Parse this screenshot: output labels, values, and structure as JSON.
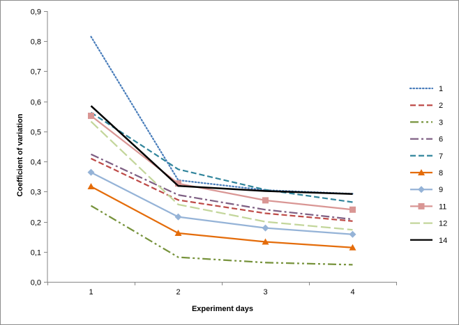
{
  "chart_data": {
    "type": "line",
    "title": "",
    "xlabel": "Experiment days",
    "ylabel": "Coefficient of variation",
    "x": [
      "1",
      "2",
      "3",
      "4"
    ],
    "ylim": [
      0,
      0.9
    ],
    "yticks": [
      "0,0",
      "0,1",
      "0,2",
      "0,3",
      "0,4",
      "0,5",
      "0,6",
      "0,7",
      "0,8",
      "0,9"
    ],
    "grid": false,
    "legend": "right",
    "series": [
      {
        "name": "1",
        "values": [
          0.815,
          0.338,
          0.305,
          0.293
        ],
        "color": "#4a7ebb",
        "dash": "dot",
        "marker": "none"
      },
      {
        "name": "2",
        "values": [
          0.41,
          0.272,
          0.228,
          0.202
        ],
        "color": "#be4b48",
        "dash": "dash",
        "marker": "none"
      },
      {
        "name": "3",
        "values": [
          0.253,
          0.082,
          0.064,
          0.057
        ],
        "color": "#77933c",
        "dash": "longdashdotdot",
        "marker": "none"
      },
      {
        "name": "6",
        "values": [
          0.424,
          0.289,
          0.24,
          0.208
        ],
        "color": "#7f6084",
        "dash": "longdashdot",
        "marker": "none"
      },
      {
        "name": "7",
        "values": [
          0.563,
          0.374,
          0.306,
          0.265
        ],
        "color": "#31859c",
        "dash": "dash",
        "marker": "none"
      },
      {
        "name": "8",
        "values": [
          0.317,
          0.162,
          0.133,
          0.114
        ],
        "color": "#e46c0a",
        "dash": "solid",
        "marker": "triangle"
      },
      {
        "name": "9",
        "values": [
          0.364,
          0.216,
          0.179,
          0.158
        ],
        "color": "#95b3d7",
        "dash": "solid",
        "marker": "diamond"
      },
      {
        "name": "11",
        "values": [
          0.552,
          0.327,
          0.271,
          0.24
        ],
        "color": "#d99694",
        "dash": "solid",
        "marker": "square"
      },
      {
        "name": "12",
        "values": [
          0.533,
          0.257,
          0.2,
          0.173
        ],
        "color": "#c3d69b",
        "dash": "longdash",
        "marker": "none"
      },
      {
        "name": "14",
        "values": [
          0.585,
          0.319,
          0.302,
          0.292
        ],
        "color": "#000000",
        "dash": "solid",
        "marker": "none"
      }
    ]
  }
}
